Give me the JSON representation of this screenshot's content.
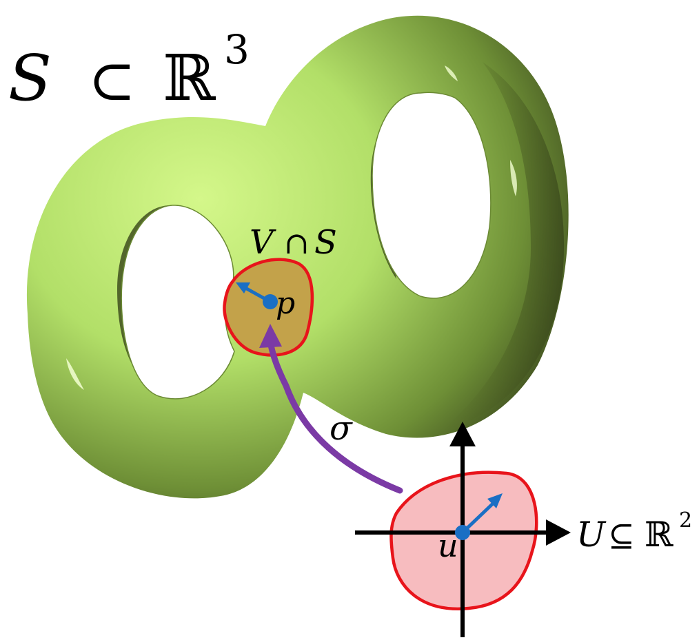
{
  "labels": {
    "surface_S": "S",
    "subset_symbol": "⊂",
    "real_R": "ℝ",
    "exp_3": "3",
    "neighborhood_V": "V",
    "cap_symbol": "∩",
    "neighborhood_S": "S",
    "point_p": "p",
    "map_sigma": "σ",
    "domain_U": "U",
    "subseteq_symbol": "⊆",
    "domain_R": "ℝ",
    "exp_2": "2",
    "point_u": "u"
  },
  "colors": {
    "surface_light": "#c9f27a",
    "surface_mid": "#9fc85a",
    "surface_dark": "#3c4a1e",
    "patch_fill": "#c3a24a",
    "region_stroke": "#e8141b",
    "domain_fill": "#f7bcbf",
    "point_blue": "#1a6fc4",
    "arrow_purple": "#7b3aa5",
    "axis_black": "#000000"
  }
}
